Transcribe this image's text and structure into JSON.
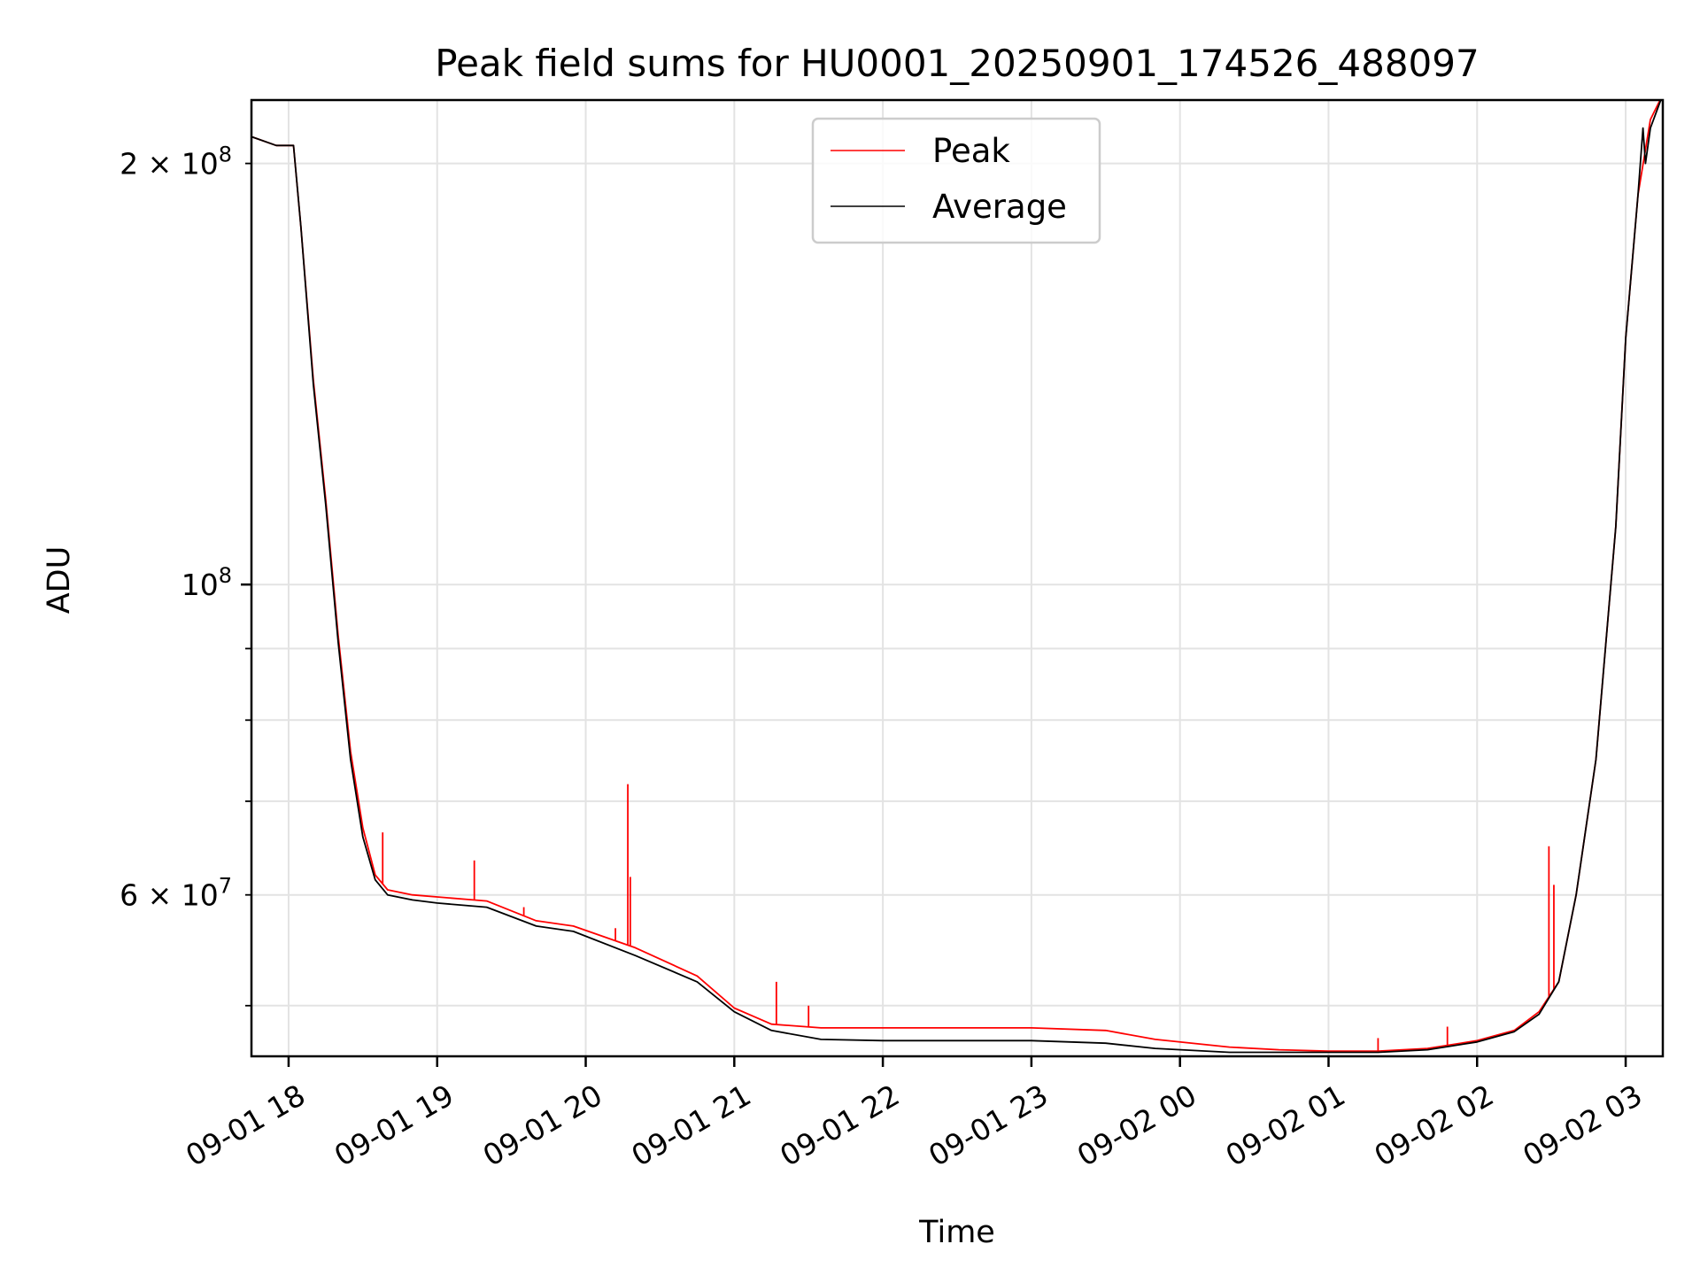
{
  "chart_data": {
    "type": "line",
    "title": "Peak field sums for HU0001_20250901_174526_488097",
    "xlabel": "Time",
    "ylabel": "ADU",
    "x_scale": "time",
    "y_scale": "log",
    "xlim": [
      "2025-09-01 17:45",
      "2025-09-02 03:15"
    ],
    "ylim": [
      46000000,
      222000000
    ],
    "grid": true,
    "legend_position": "top-center",
    "x_ticks": [
      {
        "value": "2025-09-01 18:00",
        "label": "09-01 18"
      },
      {
        "value": "2025-09-01 19:00",
        "label": "09-01 19"
      },
      {
        "value": "2025-09-01 20:00",
        "label": "09-01 20"
      },
      {
        "value": "2025-09-01 21:00",
        "label": "09-01 21"
      },
      {
        "value": "2025-09-01 22:00",
        "label": "09-01 22"
      },
      {
        "value": "2025-09-01 23:00",
        "label": "09-01 23"
      },
      {
        "value": "2025-09-02 00:00",
        "label": "09-02 00"
      },
      {
        "value": "2025-09-02 01:00",
        "label": "09-02 01"
      },
      {
        "value": "2025-09-02 02:00",
        "label": "09-02 02"
      },
      {
        "value": "2025-09-02 03:00",
        "label": "09-02 03"
      }
    ],
    "y_major_ticks": [
      {
        "value": 100000000,
        "mantissa": "",
        "base": "10",
        "exp": "8"
      }
    ],
    "y_labeled_minor_ticks": [
      {
        "value": 60000000,
        "mantissa": "6",
        "base": "10",
        "exp": "7"
      },
      {
        "value": 200000000,
        "mantissa": "2",
        "base": "10",
        "exp": "8"
      }
    ],
    "y_minor_ticks": [
      50000000,
      60000000,
      70000000,
      80000000,
      90000000,
      200000000
    ],
    "series": [
      {
        "name": "Peak",
        "color": "#ff0000",
        "x": [
          "2025-09-01 17:45",
          "2025-09-01 17:55",
          "2025-09-01 18:02",
          "2025-09-01 18:05",
          "2025-09-01 18:10",
          "2025-09-01 18:15",
          "2025-09-01 18:20",
          "2025-09-01 18:25",
          "2025-09-01 18:30",
          "2025-09-01 18:35",
          "2025-09-01 18:40",
          "2025-09-01 18:50",
          "2025-09-01 19:00",
          "2025-09-01 19:20",
          "2025-09-01 19:40",
          "2025-09-01 19:55",
          "2025-09-01 20:20",
          "2025-09-01 20:45",
          "2025-09-01 21:00",
          "2025-09-01 21:15",
          "2025-09-01 21:35",
          "2025-09-01 22:00",
          "2025-09-01 22:30",
          "2025-09-01 23:00",
          "2025-09-01 23:30",
          "2025-09-01 23:50",
          "2025-09-02 00:20",
          "2025-09-02 00:40",
          "2025-09-02 01:00",
          "2025-09-02 01:20",
          "2025-09-02 01:40",
          "2025-09-02 02:00",
          "2025-09-02 02:15",
          "2025-09-02 02:25",
          "2025-09-02 02:33",
          "2025-09-02 02:40",
          "2025-09-02 02:48",
          "2025-09-02 02:56",
          "2025-09-02 03:00",
          "2025-09-02 03:05",
          "2025-09-02 03:10",
          "2025-09-02 03:15"
        ],
        "values": [
          209000000,
          206000000,
          206000000,
          180000000,
          140000000,
          115000000,
          92000000,
          76000000,
          67000000,
          62000000,
          60500000,
          60000000,
          59800000,
          59400000,
          57500000,
          57000000,
          55000000,
          52500000,
          49800000,
          48500000,
          48200000,
          48200000,
          48200000,
          48200000,
          48000000,
          47300000,
          46700000,
          46500000,
          46400000,
          46400000,
          46600000,
          47200000,
          48000000,
          49500000,
          52000000,
          60000000,
          75000000,
          110000000,
          150000000,
          190000000,
          215000000,
          224000000
        ],
        "spikes": [
          {
            "x": "2025-09-01 18:38",
            "value": 66500000
          },
          {
            "x": "2025-09-01 19:15",
            "value": 63500000
          },
          {
            "x": "2025-09-01 19:35",
            "value": 58800000
          },
          {
            "x": "2025-09-01 20:12",
            "value": 56800000
          },
          {
            "x": "2025-09-01 20:17",
            "value": 72000000
          },
          {
            "x": "2025-09-01 20:18",
            "value": 61800000
          },
          {
            "x": "2025-09-01 21:17",
            "value": 52000000
          },
          {
            "x": "2025-09-01 21:30",
            "value": 50000000
          },
          {
            "x": "2025-09-02 01:20",
            "value": 47400000
          },
          {
            "x": "2025-09-02 01:48",
            "value": 48300000
          },
          {
            "x": "2025-09-02 02:29",
            "value": 65000000
          },
          {
            "x": "2025-09-02 02:31",
            "value": 61000000
          }
        ]
      },
      {
        "name": "Average",
        "color": "#000000",
        "x": [
          "2025-09-01 17:45",
          "2025-09-01 17:55",
          "2025-09-01 18:02",
          "2025-09-01 18:05",
          "2025-09-01 18:10",
          "2025-09-01 18:15",
          "2025-09-01 18:20",
          "2025-09-01 18:25",
          "2025-09-01 18:30",
          "2025-09-01 18:35",
          "2025-09-01 18:40",
          "2025-09-01 18:50",
          "2025-09-01 19:00",
          "2025-09-01 19:20",
          "2025-09-01 19:40",
          "2025-09-01 19:55",
          "2025-09-01 20:20",
          "2025-09-01 20:45",
          "2025-09-01 21:00",
          "2025-09-01 21:15",
          "2025-09-01 21:35",
          "2025-09-01 22:00",
          "2025-09-01 22:30",
          "2025-09-01 23:00",
          "2025-09-01 23:30",
          "2025-09-01 23:50",
          "2025-09-02 00:20",
          "2025-09-02 00:40",
          "2025-09-02 01:00",
          "2025-09-02 01:20",
          "2025-09-02 01:40",
          "2025-09-02 02:00",
          "2025-09-02 02:15",
          "2025-09-02 02:25",
          "2025-09-02 02:33",
          "2025-09-02 02:40",
          "2025-09-02 02:48",
          "2025-09-02 02:56",
          "2025-09-02 03:00",
          "2025-09-02 03:05",
          "2025-09-02 03:07",
          "2025-09-02 03:08",
          "2025-09-02 03:10",
          "2025-09-02 03:15"
        ],
        "values": [
          209000000,
          206000000,
          206000000,
          180000000,
          139000000,
          114000000,
          91000000,
          75000000,
          66000000,
          61500000,
          60000000,
          59500000,
          59200000,
          58800000,
          57000000,
          56500000,
          54300000,
          52000000,
          49500000,
          48000000,
          47300000,
          47200000,
          47200000,
          47200000,
          47000000,
          46600000,
          46300000,
          46300000,
          46300000,
          46300000,
          46500000,
          47100000,
          47900000,
          49300000,
          52000000,
          60000000,
          75000000,
          110000000,
          150000000,
          190000000,
          212000000,
          200000000,
          212000000,
          224000000
        ]
      }
    ]
  }
}
